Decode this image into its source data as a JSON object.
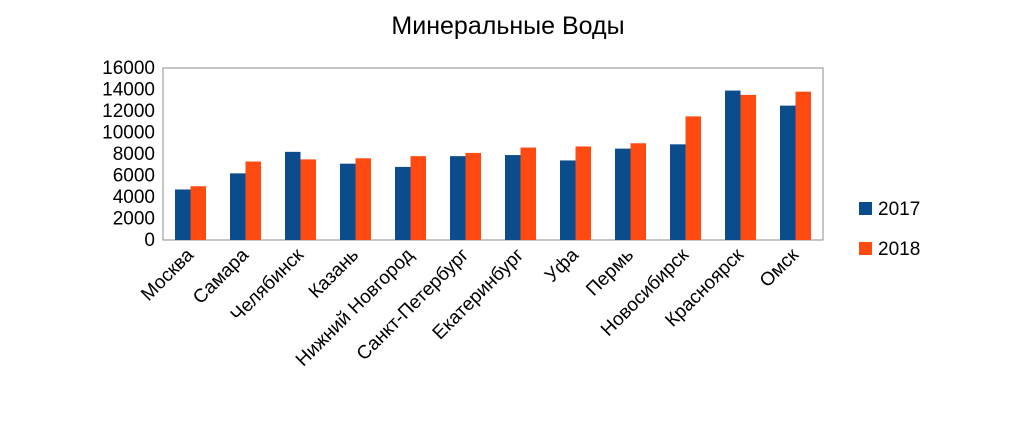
{
  "chart_data": {
    "type": "bar",
    "title": "Минеральные Воды",
    "categories": [
      "Москва",
      "Самара",
      "Челябинск",
      "Казань",
      "Нижний Новгород",
      "Санкт-Петербург",
      "Екатеринбург",
      "Уфа",
      "Пермь",
      "Новосибирск",
      "Красноярск",
      "Омск"
    ],
    "series": [
      {
        "name": "2017",
        "color": "#0B4C8C",
        "values": [
          4700,
          6200,
          8200,
          7100,
          6800,
          7800,
          7900,
          7400,
          8500,
          8900,
          13900,
          12500
        ]
      },
      {
        "name": "2018",
        "color": "#FF4A12",
        "values": [
          5000,
          7300,
          7500,
          7600,
          7800,
          8100,
          8600,
          8700,
          9000,
          11500,
          13500,
          13800
        ]
      }
    ],
    "ylim": [
      0,
      16000
    ],
    "yticks": [
      "0",
      "2000",
      "4000",
      "6000",
      "8000",
      "10000",
      "12000",
      "14000",
      "16000"
    ],
    "grid": false,
    "legend_position": "right"
  }
}
